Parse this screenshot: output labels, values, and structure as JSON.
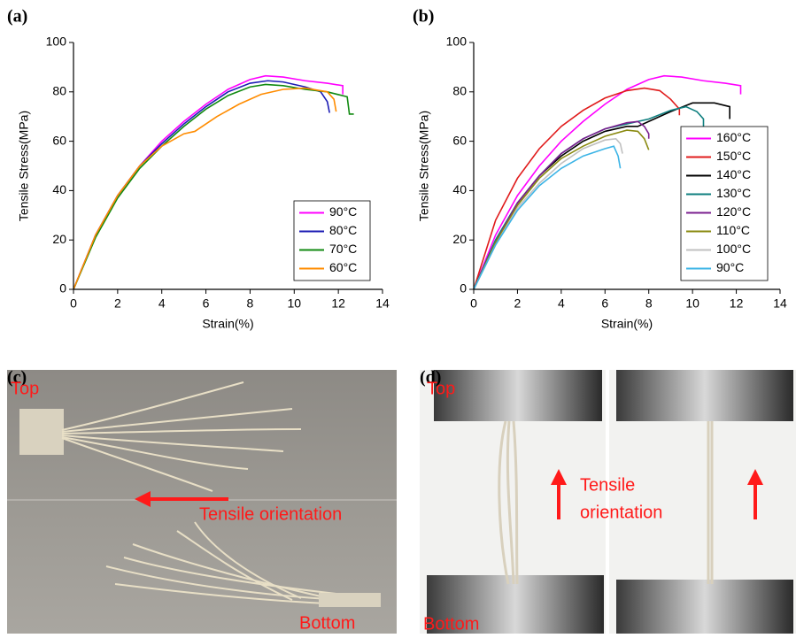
{
  "chart_data": [
    {
      "type": "line",
      "label": "(a)",
      "x_label": "Strain(%)",
      "y_label": "Tensile Stress(MPa)",
      "xlim": [
        0,
        14
      ],
      "xticks": [
        0,
        2,
        4,
        6,
        8,
        10,
        12,
        14
      ],
      "ylim": [
        0,
        100
      ],
      "yticks": [
        0,
        20,
        40,
        60,
        80,
        100
      ],
      "legend": "lower right",
      "series": [
        {
          "name": "90°C",
          "color": "#ff00ff",
          "x": [
            0,
            1,
            2,
            3,
            4,
            5,
            6,
            7,
            8,
            8.7,
            9.5,
            10.5,
            11.5,
            12.2,
            12.2
          ],
          "values": [
            0,
            22,
            38,
            50,
            60,
            68,
            75,
            81,
            85,
            86.5,
            86,
            84.5,
            83.5,
            82.5,
            79
          ]
        },
        {
          "name": "80°C",
          "color": "#1c1cb4",
          "x": [
            0,
            1,
            2,
            3,
            4,
            5,
            6,
            7,
            8,
            8.8,
            9.5,
            10.5,
            11.2,
            11.5,
            11.6
          ],
          "values": [
            0,
            22,
            38,
            50,
            59,
            67,
            74,
            80,
            83.5,
            84.5,
            84,
            82,
            80,
            76,
            71.5
          ]
        },
        {
          "name": "70°C",
          "color": "#118a11",
          "x": [
            0,
            1,
            2,
            3,
            4,
            5,
            6,
            7,
            8,
            8.7,
            9.5,
            10.5,
            11.5,
            12.4,
            12.5,
            12.7
          ],
          "values": [
            0,
            21,
            37,
            49,
            58,
            66,
            73,
            78.5,
            82,
            83,
            82.5,
            81,
            80,
            78,
            71,
            71
          ]
        },
        {
          "name": "60°C",
          "color": "#ff8c00",
          "x": [
            0,
            1,
            2,
            3,
            4,
            5,
            5.5,
            6.5,
            7.5,
            8.5,
            9.5,
            10.5,
            11.5,
            11.8,
            11.9
          ],
          "values": [
            0,
            22,
            38,
            50,
            58,
            63,
            64,
            70,
            75,
            79,
            81,
            81.5,
            80,
            77,
            72
          ]
        }
      ]
    },
    {
      "type": "line",
      "label": "(b)",
      "x_label": "Strain(%)",
      "y_label": "Tensile Stress(MPa)",
      "xlim": [
        0,
        14
      ],
      "xticks": [
        0,
        2,
        4,
        6,
        8,
        10,
        12,
        14
      ],
      "ylim": [
        0,
        100
      ],
      "yticks": [
        0,
        20,
        40,
        60,
        80,
        100
      ],
      "legend": "lower right",
      "series": [
        {
          "name": "160°C",
          "color": "#ff00ff",
          "x": [
            0,
            1,
            2,
            3,
            4,
            5,
            6,
            7,
            8,
            8.7,
            9.5,
            10.5,
            11.5,
            12.2,
            12.2
          ],
          "values": [
            0,
            22,
            38,
            50,
            60,
            68,
            75,
            81,
            85,
            86.5,
            86,
            84.5,
            83.5,
            82.5,
            79
          ]
        },
        {
          "name": "150°C",
          "color": "#e01b1b",
          "x": [
            0,
            1,
            2,
            3,
            4,
            5,
            6,
            7,
            7.8,
            8.5,
            9,
            9.4,
            9.4
          ],
          "values": [
            0,
            28,
            45,
            57,
            66,
            72.5,
            77.5,
            80.5,
            81.5,
            80.5,
            77,
            73,
            70.5
          ]
        },
        {
          "name": "140°C",
          "color": "#000000",
          "x": [
            0,
            1,
            2,
            3,
            4,
            5,
            6,
            7,
            7.5,
            8,
            9,
            10,
            11,
            11.7,
            11.7
          ],
          "values": [
            0,
            20,
            35,
            46,
            54,
            60,
            64,
            66,
            66,
            68,
            72,
            75.5,
            75.5,
            74,
            69
          ]
        },
        {
          "name": "130°C",
          "color": "#0f7f7f",
          "x": [
            0,
            1,
            2,
            3,
            4,
            5,
            6,
            7,
            8,
            9,
            9.7,
            10.2,
            10.5,
            10.5
          ],
          "values": [
            0,
            20,
            35,
            46,
            55,
            61,
            65,
            67,
            69,
            72.5,
            74,
            72,
            69,
            65
          ]
        },
        {
          "name": "120°C",
          "color": "#7b1f8f",
          "x": [
            0,
            1,
            2,
            3,
            4,
            5,
            6,
            7,
            7.5,
            7.8,
            8,
            8
          ],
          "values": [
            0,
            19,
            35,
            46,
            55,
            61,
            65,
            67.5,
            68,
            66,
            63,
            61
          ]
        },
        {
          "name": "110°C",
          "color": "#8a8a10",
          "x": [
            0,
            1,
            2,
            3,
            4,
            5,
            6,
            7,
            7.5,
            7.8,
            8
          ],
          "values": [
            0,
            19,
            34,
            45,
            53,
            58,
            62,
            64.5,
            64,
            61,
            56.5
          ]
        },
        {
          "name": "100°C",
          "color": "#c0c0c0",
          "x": [
            0,
            1,
            2,
            3,
            4,
            5,
            6,
            6.5,
            6.7,
            6.8
          ],
          "values": [
            0,
            18,
            33,
            43,
            51,
            57,
            60.5,
            61,
            59,
            55
          ]
        },
        {
          "name": "90°C",
          "color": "#3cb4e6",
          "x": [
            0,
            1,
            2,
            3,
            4,
            5,
            6,
            6.4,
            6.6,
            6.7
          ],
          "values": [
            0,
            18,
            32,
            42,
            49,
            54,
            57,
            58,
            54,
            49
          ]
        }
      ]
    }
  ],
  "photos": [
    {
      "label": "(c)",
      "texts": [
        "Top",
        "Tensile orientation",
        "Bottom"
      ]
    },
    {
      "label": "(d)",
      "texts": [
        "Top",
        "Tensile",
        "orientation",
        "Bottom"
      ]
    }
  ]
}
